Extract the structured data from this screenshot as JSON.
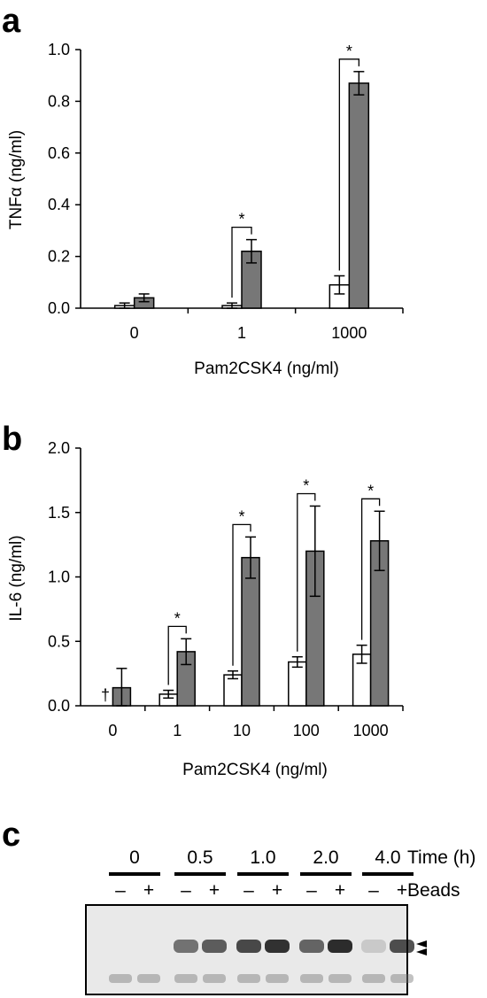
{
  "panels": {
    "a": "a",
    "b": "b",
    "c": "c"
  },
  "chart_data": [
    {
      "type": "bar",
      "panel": "a",
      "xlabel": "Pam2CSK4 (ng/ml)",
      "ylabel": "TNFα (ng/ml)",
      "ylim": [
        0,
        1.0
      ],
      "yticks": [
        "0.0",
        "0.2",
        "0.4",
        "0.6",
        "0.8",
        "1.0"
      ],
      "categories": [
        "0",
        "1",
        "1000"
      ],
      "series": [
        {
          "color": "#ffffff",
          "values": [
            0.01,
            0.01,
            0.09
          ],
          "errors": [
            0.01,
            0.01,
            0.035
          ]
        },
        {
          "color": "#777777",
          "values": [
            0.04,
            0.22,
            0.87
          ],
          "errors": [
            0.015,
            0.045,
            0.045
          ]
        }
      ],
      "significance": [
        "",
        "*",
        "*"
      ]
    },
    {
      "type": "bar",
      "panel": "b",
      "xlabel": "Pam2CSK4 (ng/ml)",
      "ylabel": "IL-6 (ng/ml)",
      "ylim": [
        0,
        2.0
      ],
      "yticks": [
        "0.0",
        "0.5",
        "1.0",
        "1.5",
        "2.0"
      ],
      "categories": [
        "0",
        "1",
        "10",
        "100",
        "1000"
      ],
      "series": [
        {
          "color": "#ffffff",
          "values": [
            0,
            0.09,
            0.24,
            0.34,
            0.4
          ],
          "errors": [
            0,
            0.03,
            0.03,
            0.04,
            0.07
          ]
        },
        {
          "color": "#777777",
          "values": [
            0.14,
            0.42,
            1.15,
            1.2,
            1.28
          ],
          "errors": [
            0.15,
            0.1,
            0.16,
            0.35,
            0.23
          ]
        }
      ],
      "significance": [
        "",
        "*",
        "*",
        "*",
        "*"
      ],
      "dagger": "†"
    }
  ],
  "gel": {
    "time_label": "Time (h)",
    "beads_label": "Beads",
    "time_points": [
      "0",
      "0.5",
      "1.0",
      "2.0",
      "4.0"
    ],
    "signs": [
      "–",
      "+"
    ],
    "band_intensity": [
      0.0,
      0.03,
      0.55,
      0.65,
      0.75,
      0.85,
      0.62,
      0.88,
      0.15,
      0.72
    ]
  }
}
